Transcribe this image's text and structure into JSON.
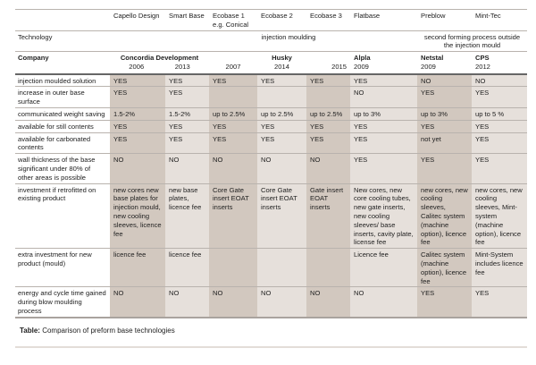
{
  "columns": [
    "Capello Design",
    "Smart Base",
    "Ecobase 1 e.g. Conical",
    "Ecobase 2",
    "Ecobase 3",
    "Flatbase",
    "Preblow",
    "Mint-Tec"
  ],
  "technology": {
    "label": "Technology",
    "injection": "injection moulding",
    "second": "second forming process outside the injection mould"
  },
  "company": {
    "label": "Company",
    "concordia": "Concordia Development",
    "years": [
      "2006",
      "2013",
      "2007",
      "2014",
      "2015",
      "2009",
      "2009",
      "2012"
    ],
    "husky": "Husky",
    "alpla": "Alpla",
    "netstal": "Netstal",
    "cps": "CPS"
  },
  "rows": [
    {
      "label": "injection moulded solution",
      "values": [
        "YES",
        "YES",
        "YES",
        "YES",
        "YES",
        "YES",
        "NO",
        "NO"
      ]
    },
    {
      "label": "increase in outer base surface",
      "values": [
        "YES",
        "YES",
        "",
        "",
        "",
        "NO",
        "YES",
        "YES"
      ]
    },
    {
      "label": "communicated weight saving",
      "values": [
        "1.5-2%",
        "1.5-2%",
        "up to 2.5%",
        "up to 2.5%",
        "up to 2.5%",
        "up to 3%",
        "up to 3%",
        "up to 5 %"
      ]
    },
    {
      "label": "available for still contents",
      "values": [
        "YES",
        "YES",
        "YES",
        "YES",
        "YES",
        "YES",
        "YES",
        "YES"
      ]
    },
    {
      "label": "available for carbonated contents",
      "values": [
        "YES",
        "YES",
        "YES",
        "YES",
        "YES",
        "YES",
        "not yet",
        "YES"
      ]
    },
    {
      "label": "wall thickness of the base significant under 80% of other areas is possible",
      "values": [
        "NO",
        "NO",
        "NO",
        "NO",
        "NO",
        "YES",
        "YES",
        "YES"
      ]
    },
    {
      "label": "investment if retrofitted on existing product",
      "values": [
        "new cores new base plates for injection mould, new cooling sleeves, licence fee",
        "new base plates, licence fee",
        "Core Gate insert EOAT inserts",
        "Core Gate insert EOAT inserts",
        "Gate insert EOAT inserts",
        "New cores, new core cooling tubes, new gate inserts, new cooling sleeves/ base inserts, cavity plate, license fee",
        "new cores, new cooling sleeves, Calitec system (machine option), licence fee",
        "new cores, new cooling sleeves, Mint-system (machine option), licence fee"
      ]
    },
    {
      "label": "extra investment  for new product (mould)",
      "values": [
        "licence fee",
        "licence fee",
        "",
        "",
        "",
        "Licence fee",
        "Calitec system (machine option), licence fee",
        "Mint-System includes licence fee"
      ]
    },
    {
      "label": "energy and cycle time gained during blow moulding process",
      "values": [
        "NO",
        "NO",
        "NO",
        "NO",
        "NO",
        "NO",
        "YES",
        "YES"
      ]
    }
  ],
  "caption": {
    "bold": "Table:",
    "text": " Comparison of preform base technologies"
  }
}
